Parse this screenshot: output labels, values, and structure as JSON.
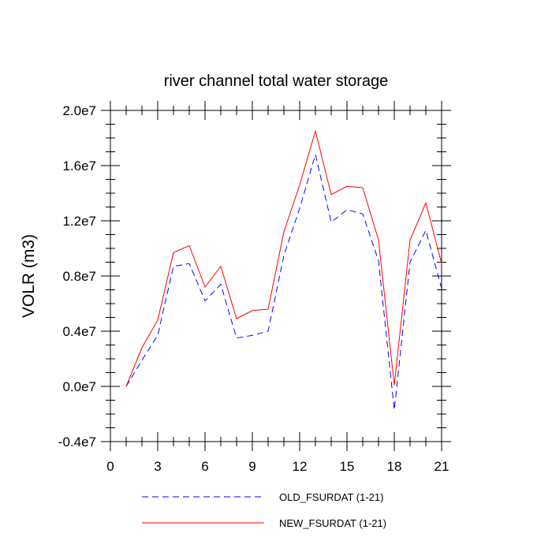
{
  "chart_data": {
    "type": "line",
    "title": "river channel total water storage",
    "xlabel": "",
    "ylabel": "VOLR  (m3)",
    "xlim": [
      0,
      21
    ],
    "ylim": [
      -4000000,
      20000000
    ],
    "x_ticks": [
      0,
      3,
      6,
      9,
      12,
      15,
      18,
      21
    ],
    "x_tick_labels": [
      "0",
      "3",
      "6",
      "9",
      "12",
      "15",
      "18",
      "21"
    ],
    "y_ticks": [
      -4000000,
      0,
      4000000,
      8000000,
      12000000,
      16000000,
      20000000
    ],
    "y_tick_labels": [
      "-0.4e7",
      "0.0e7",
      "0.4e7",
      "0.8e7",
      "1.2e7",
      "1.6e7",
      "2.0e7"
    ],
    "grid": false,
    "legend_placement": "bottom",
    "x": [
      1,
      2,
      3,
      4,
      5,
      6,
      7,
      8,
      9,
      10,
      11,
      12,
      13,
      14,
      15,
      16,
      17,
      18,
      19,
      20,
      21
    ],
    "series": [
      {
        "name": "OLD_FSURDAT (1-21)",
        "color": "#0000ff",
        "dash": "dashed",
        "values": [
          0,
          1900000,
          3700000,
          8700000,
          8900000,
          6200000,
          7400000,
          3500000,
          3700000,
          4000000,
          9500000,
          12900000,
          16800000,
          11900000,
          12800000,
          12500000,
          9100000,
          -1700000,
          9000000,
          11300000,
          7100000
        ]
      },
      {
        "name": "NEW_FSURDAT (1-21)",
        "color": "#ff0000",
        "dash": "solid",
        "values": [
          0,
          2800000,
          4800000,
          9700000,
          10200000,
          7200000,
          8700000,
          4900000,
          5500000,
          5600000,
          11200000,
          14600000,
          18500000,
          13900000,
          14500000,
          14400000,
          10600000,
          100000,
          10600000,
          13300000,
          8900000
        ]
      }
    ]
  }
}
